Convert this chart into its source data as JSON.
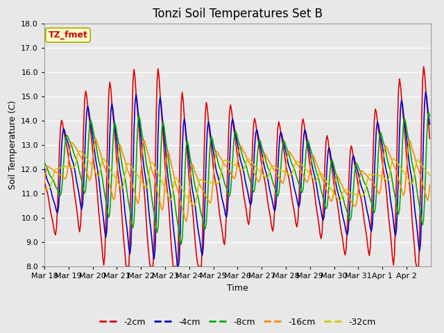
{
  "title": "Tonzi Soil Temperatures Set B",
  "xlabel": "Time",
  "ylabel": "Soil Temperature (C)",
  "ylim": [
    8.0,
    18.0
  ],
  "yticks": [
    8.0,
    9.0,
    10.0,
    11.0,
    12.0,
    13.0,
    14.0,
    15.0,
    16.0,
    17.0,
    18.0
  ],
  "legend_label": "TZ_fmet",
  "legend_box_color": "#ffffcc",
  "legend_box_edge": "#aaaa00",
  "series_labels": [
    "-2cm",
    "-4cm",
    "-8cm",
    "-16cm",
    "-32cm"
  ],
  "series_colors": [
    "#dd0000",
    "#0000cc",
    "#00aa00",
    "#ff8800",
    "#cccc00"
  ],
  "background_color": "#e8e8e8",
  "plot_bg_color": "#e8e8e8",
  "grid_color": "#ffffff",
  "title_fontsize": 12,
  "axis_fontsize": 9,
  "tick_fontsize": 8,
  "legend_fontsize": 9,
  "line_width": 1.2,
  "xtick_labels": [
    "Mar 18",
    "Mar 19",
    "Mar 20",
    "Mar 21",
    "Mar 22",
    "Mar 23",
    "Mar 24",
    "Mar 25",
    "Mar 26",
    "Mar 27",
    "Mar 28",
    "Mar 29",
    "Mar 30",
    "Mar 31",
    "Apr 1",
    "Apr 2"
  ]
}
